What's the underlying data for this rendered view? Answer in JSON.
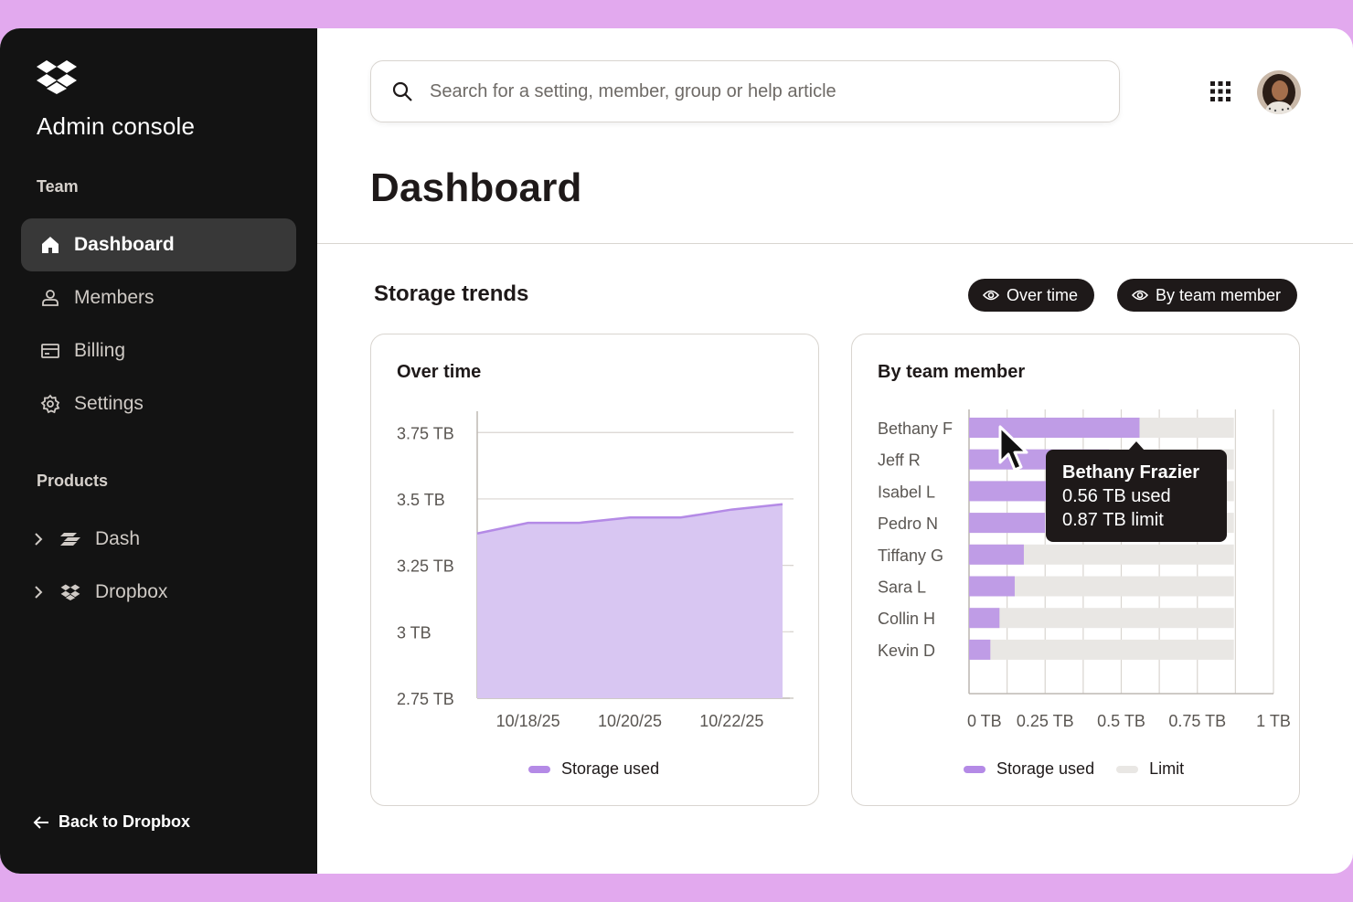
{
  "sidebar": {
    "title": "Admin console",
    "team_label": "Team",
    "nav": [
      {
        "label": "Dashboard",
        "icon": "home-icon",
        "active": true
      },
      {
        "label": "Members",
        "icon": "person-icon"
      },
      {
        "label": "Billing",
        "icon": "card-icon"
      },
      {
        "label": "Settings",
        "icon": "gear-icon"
      }
    ],
    "products_label": "Products",
    "products": [
      {
        "label": "Dash",
        "icon": "dash-icon"
      },
      {
        "label": "Dropbox",
        "icon": "dropbox-icon"
      }
    ],
    "back_label": "Back to Dropbox"
  },
  "header": {
    "search_placeholder": "Search for a setting, member, group or help article"
  },
  "main": {
    "page_title": "Dashboard",
    "section_title": "Storage trends",
    "pills": [
      "Over time",
      "By team member"
    ]
  },
  "colors": {
    "accent": "#b48ae6",
    "area_fill": "#d8c6f2",
    "limit": "#e9e7e4",
    "dark": "#1e1919"
  },
  "chart_data": [
    {
      "type": "area",
      "title": "Over time",
      "x": [
        "10/17/25",
        "10/18/25",
        "10/19/25",
        "10/20/25",
        "10/21/25",
        "10/22/25",
        "10/23/25"
      ],
      "x_tick_labels": [
        "10/18/25",
        "10/20/25",
        "10/22/25"
      ],
      "series": [
        {
          "name": "Storage used",
          "values": [
            3.37,
            3.41,
            3.41,
            3.43,
            3.43,
            3.46,
            3.48
          ]
        }
      ],
      "ylim": [
        2.75,
        3.83
      ],
      "y_ticks": [
        2.75,
        3,
        3.25,
        3.5,
        3.75
      ],
      "y_tick_labels": [
        "2.75 TB",
        "3 TB",
        "3.25 TB",
        "3.5 TB",
        "3.75 TB"
      ],
      "grid": true
    },
    {
      "type": "bar",
      "orientation": "horizontal",
      "title": "By team member",
      "categories": [
        "Bethany F",
        "Jeff R",
        "Isabel L",
        "Pedro N",
        "Tiffany G",
        "Sara L",
        "Collin H",
        "Kevin D"
      ],
      "series": [
        {
          "name": "Storage used",
          "values": [
            0.56,
            0.46,
            0.38,
            0.25,
            0.18,
            0.15,
            0.1,
            0.07
          ]
        },
        {
          "name": "Limit",
          "values": [
            0.87,
            0.87,
            0.87,
            0.87,
            0.87,
            0.87,
            0.87,
            0.87
          ]
        }
      ],
      "xlim": [
        0,
        1
      ],
      "x_ticks": [
        0,
        0.25,
        0.5,
        0.75,
        1
      ],
      "x_tick_labels": [
        "0 TB",
        "0.25 TB",
        "0.5 TB",
        "0.75 TB",
        "1 TB"
      ],
      "grid": true,
      "tooltip": {
        "name": "Bethany Frazier",
        "used": "0.56 TB used",
        "limit": "0.87 TB limit"
      }
    }
  ]
}
